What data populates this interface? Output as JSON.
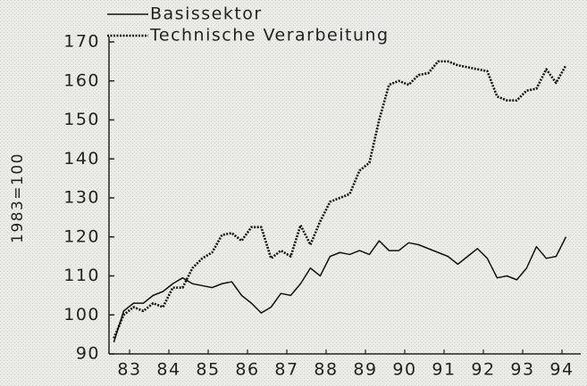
{
  "chart_data": {
    "type": "line",
    "ylabel": "1983=100",
    "x": [
      1983.1,
      1983.35,
      1983.6,
      1983.85,
      1984.1,
      1984.35,
      1984.6,
      1984.85,
      1985.1,
      1985.35,
      1985.6,
      1985.85,
      1986.1,
      1986.35,
      1986.6,
      1986.85,
      1987.1,
      1987.35,
      1987.6,
      1987.85,
      1988.1,
      1988.35,
      1988.6,
      1988.85,
      1989.1,
      1989.35,
      1989.6,
      1989.85,
      1990.1,
      1990.35,
      1990.6,
      1990.85,
      1991.1,
      1991.35,
      1991.6,
      1991.85,
      1992.1,
      1992.35,
      1992.6,
      1992.85,
      1993.1,
      1993.35,
      1993.6,
      1993.85,
      1994.1,
      1994.35,
      1994.6
    ],
    "series": [
      {
        "name": "Basissektor",
        "color": "#111111",
        "style": "solid",
        "values": [
          93,
          101,
          103,
          103,
          105,
          106,
          108,
          109.5,
          108,
          107.5,
          107,
          108,
          108.5,
          105,
          103,
          100.5,
          102,
          105.5,
          105,
          108,
          112,
          110,
          115,
          116,
          115.5,
          116.5,
          115.5,
          119,
          116.5,
          116.5,
          118.5,
          118,
          117,
          116,
          115,
          113,
          115,
          117,
          114.5,
          109.5,
          110,
          109,
          112,
          117.5,
          114.5,
          115,
          120
        ]
      },
      {
        "name": "Technische Verarbeitung",
        "color": "#111111",
        "style": "dotted",
        "values": [
          94,
          100,
          102,
          101,
          103,
          102,
          107,
          107,
          112,
          114.5,
          116,
          120.5,
          121,
          119,
          122.5,
          122.5,
          114.5,
          116.5,
          115,
          123,
          118,
          124,
          129,
          130,
          131,
          137,
          139,
          150,
          159,
          160,
          159,
          161.5,
          162,
          165,
          165,
          164,
          163.5,
          163,
          162.5,
          156,
          155,
          155,
          157.5,
          158,
          163,
          159.5,
          164
        ]
      }
    ],
    "xlim": [
      1983,
      1995
    ],
    "xticks": [
      {
        "value": 1983.5,
        "label": "83"
      },
      {
        "value": 1984.5,
        "label": "84"
      },
      {
        "value": 1985.5,
        "label": "85"
      },
      {
        "value": 1986.5,
        "label": "86"
      },
      {
        "value": 1987.5,
        "label": "87"
      },
      {
        "value": 1988.5,
        "label": "88"
      },
      {
        "value": 1989.5,
        "label": "89"
      },
      {
        "value": 1990.5,
        "label": "90"
      },
      {
        "value": 1991.5,
        "label": "91"
      },
      {
        "value": 1992.5,
        "label": "92"
      },
      {
        "value": 1993.5,
        "label": "93"
      },
      {
        "value": 1994.5,
        "label": "94"
      }
    ],
    "ylim": [
      90,
      170
    ],
    "yticks": [
      90,
      100,
      110,
      120,
      130,
      140,
      150,
      160,
      170
    ],
    "legend": "top-left"
  }
}
